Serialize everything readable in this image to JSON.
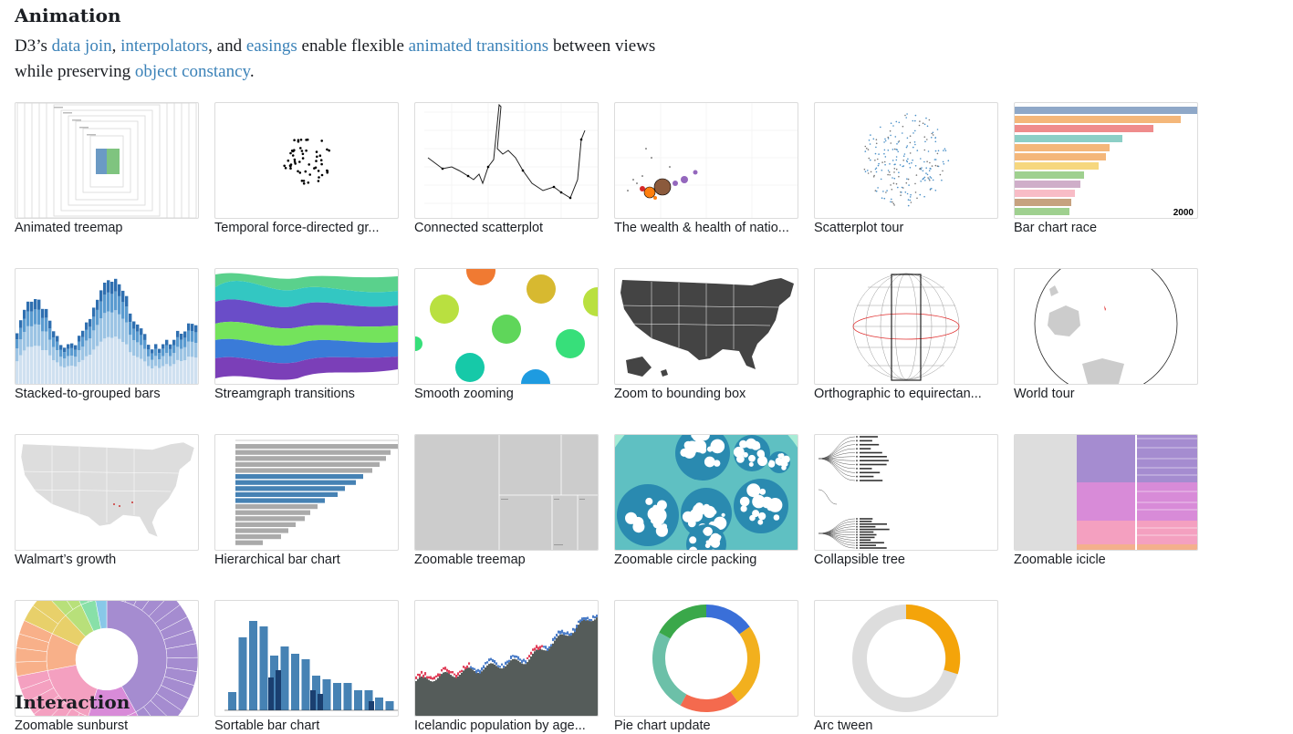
{
  "section": {
    "title": "Animation",
    "next_title": "Interaction"
  },
  "lead": {
    "t1": "D3’s ",
    "l1": "data join",
    "t2": ", ",
    "l2": "interpolators",
    "t3": ", and ",
    "l3": "easings",
    "t4": " enable flexible ",
    "l4": "animated transitions",
    "t5": " between views while preserving ",
    "l5": "object constancy",
    "t6": "."
  },
  "cards": [
    {
      "label": "Animated treemap",
      "icon": "treemap-thumbnail"
    },
    {
      "label": "Temporal force-directed gr...",
      "icon": "force-graph-thumbnail"
    },
    {
      "label": "Connected scatterplot",
      "icon": "connected-scatter-thumbnail"
    },
    {
      "label": "The wealth & health of natio...",
      "icon": "bubble-chart-thumbnail"
    },
    {
      "label": "Scatterplot tour",
      "icon": "scatter-thumbnail"
    },
    {
      "label": "Bar chart race",
      "icon": "bar-race-thumbnail",
      "year": "2000"
    },
    {
      "label": "Stacked-to-grouped bars",
      "icon": "stacked-bars-thumbnail"
    },
    {
      "label": "Streamgraph transitions",
      "icon": "streamgraph-thumbnail"
    },
    {
      "label": "Smooth zooming",
      "icon": "circles-thumbnail"
    },
    {
      "label": "Zoom to bounding box",
      "icon": "us-map-thumbnail"
    },
    {
      "label": "Orthographic to equirectan...",
      "icon": "globe-grid-thumbnail"
    },
    {
      "label": "World tour",
      "icon": "globe-thumbnail"
    },
    {
      "label": "Walmart’s growth",
      "icon": "us-map-light-thumbnail"
    },
    {
      "label": "Hierarchical bar chart",
      "icon": "hbar-thumbnail"
    },
    {
      "label": "Zoomable treemap",
      "icon": "gray-treemap-thumbnail"
    },
    {
      "label": "Zoomable circle packing",
      "icon": "circle-pack-thumbnail"
    },
    {
      "label": "Collapsible tree",
      "icon": "tree-thumbnail"
    },
    {
      "label": "Zoomable icicle",
      "icon": "icicle-thumbnail"
    },
    {
      "label": "Zoomable sunburst",
      "icon": "sunburst-thumbnail"
    },
    {
      "label": "Sortable bar chart",
      "icon": "vbar-thumbnail"
    },
    {
      "label": "Icelandic population by age...",
      "icon": "population-thumbnail"
    },
    {
      "label": "Pie chart update",
      "icon": "donut-thumbnail"
    },
    {
      "label": "Arc tween",
      "icon": "arc-thumbnail"
    }
  ],
  "colors": {
    "link": "#3b82b8",
    "text": "#1b1e23",
    "border": "#dcdcdc"
  }
}
